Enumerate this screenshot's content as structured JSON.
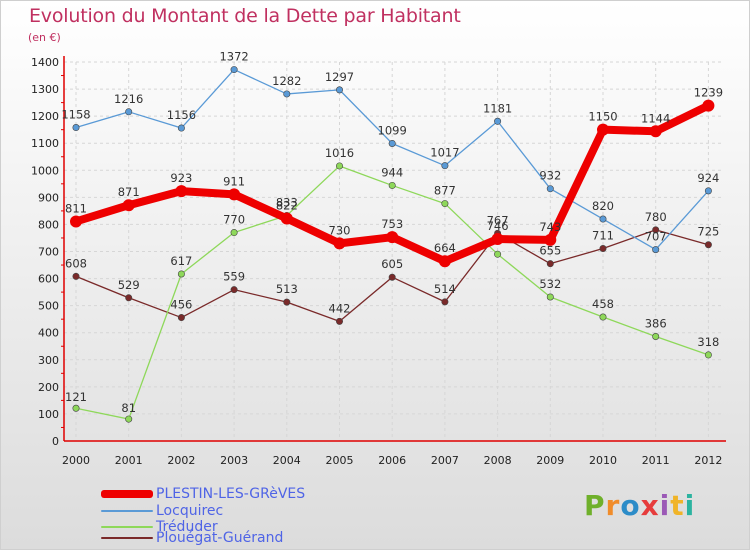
{
  "title": "Evolution du Montant de la Dette par Habitant",
  "unit_label": "(en €)",
  "logo_text": "Proxiti",
  "logo_colors": [
    "#6fb02b",
    "#f08c2a",
    "#2c8cc8",
    "#e63c3c",
    "#9b59b6",
    "#f0b428",
    "#2cb3a0"
  ],
  "chart_data": {
    "type": "line",
    "x": [
      "2000",
      "2001",
      "2002",
      "2003",
      "2004",
      "2005",
      "2006",
      "2007",
      "2008",
      "2009",
      "2010",
      "2011",
      "2012"
    ],
    "ylim": [
      0,
      1400
    ],
    "yticks": [
      0,
      100,
      200,
      300,
      400,
      500,
      600,
      700,
      800,
      900,
      1000,
      1100,
      1200,
      1300,
      1400
    ],
    "grid": true,
    "legend_position": "bottom-left",
    "series": [
      {
        "name": "PLESTIN-LES-GRèVES",
        "color": "#ee0000",
        "values": [
          811,
          871,
          923,
          911,
          822,
          730,
          753,
          664,
          746,
          743,
          1150,
          1144,
          1239
        ],
        "labels": [
          "811",
          "871",
          "923",
          "911",
          "822",
          "730",
          "753",
          "664",
          "746",
          "743",
          "1150",
          "1144",
          "1239"
        ]
      },
      {
        "name": "Locquirec",
        "color": "#5a9ad6",
        "values": [
          1158,
          1216,
          1156,
          1372,
          1282,
          1297,
          1099,
          1017,
          1181,
          932,
          820,
          707,
          924
        ],
        "labels": [
          "1158",
          "1216",
          "1156",
          "1372",
          "1282",
          "1297",
          "1099",
          "1017",
          "1181",
          "932",
          "820",
          "707",
          "924"
        ]
      },
      {
        "name": "Tréduder",
        "color": "#8ed85a",
        "values": [
          121,
          81,
          617,
          770,
          833,
          1016,
          944,
          877,
          690,
          532,
          458,
          386,
          318
        ],
        "labels": [
          "121",
          "81",
          "617",
          "770",
          "833",
          "1016",
          "944",
          "877",
          "",
          "532",
          "458",
          "386",
          "318"
        ]
      },
      {
        "name": "Plouégat-Guérand",
        "color": "#7a2a2a",
        "values": [
          608,
          529,
          456,
          559,
          513,
          442,
          605,
          514,
          767,
          655,
          711,
          780,
          725
        ],
        "labels": [
          "608",
          "529",
          "456",
          "559",
          "513",
          "442",
          "605",
          "514",
          "767",
          "655",
          "711",
          "780",
          "725"
        ]
      }
    ]
  }
}
